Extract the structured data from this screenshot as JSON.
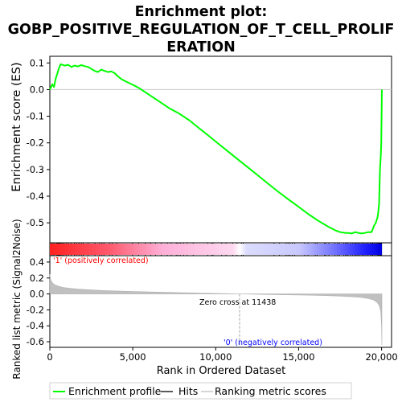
{
  "chart_data": {
    "type": "line",
    "title_lines": [
      "Enrichment plot:",
      "GOBP_POSITIVE_REGULATION_OF_T_CELL_PROLIF",
      "ERATION"
    ],
    "colors": {
      "enrichment": "#00ff00",
      "hits": "#000000",
      "metric_fill": "#c0c0c0",
      "positive_band": "#ff0000",
      "negative_band": "#0000ff",
      "zero_cross_label": "#000000",
      "pos_label": "#ff0000",
      "neg_label": "#0000ff"
    },
    "es_panel": {
      "ylabel": "Enrichment score (ES)",
      "ylim": [
        -0.575,
        0.125
      ],
      "yticks": [
        0.1,
        0.0,
        -0.1,
        -0.2,
        -0.3,
        -0.4,
        -0.5
      ],
      "ytick_labels": [
        "0.1",
        "0.0",
        "-0.1",
        "-0.2",
        "-0.3",
        "-0.4",
        "-0.5"
      ],
      "series": {
        "name": "Enrichment profile",
        "x": [
          0,
          150,
          250,
          350,
          450,
          550,
          650,
          750,
          900,
          1100,
          1300,
          1500,
          1700,
          1900,
          2100,
          2300,
          2500,
          2700,
          2900,
          3100,
          3300,
          3500,
          3700,
          3900,
          4100,
          4300,
          4600,
          5000,
          5400,
          6000,
          6600,
          7200,
          7800,
          8400,
          9000,
          9600,
          10200,
          10800,
          11400,
          12000,
          12600,
          13200,
          13800,
          14400,
          15000,
          15600,
          16200,
          16800,
          17200,
          17500,
          17800,
          18000,
          18200,
          18400,
          18600,
          18800,
          19000,
          19200,
          19400,
          19550,
          19650,
          19750,
          19800,
          19850,
          19900,
          19950,
          19980,
          20000,
          20020
        ],
        "y": [
          0.0,
          0.02,
          0.01,
          0.04,
          0.06,
          0.08,
          0.095,
          0.093,
          0.09,
          0.093,
          0.085,
          0.09,
          0.087,
          0.092,
          0.088,
          0.085,
          0.078,
          0.07,
          0.066,
          0.075,
          0.07,
          0.066,
          0.068,
          0.062,
          0.05,
          0.04,
          0.03,
          0.018,
          0.005,
          -0.02,
          -0.045,
          -0.07,
          -0.09,
          -0.115,
          -0.145,
          -0.175,
          -0.205,
          -0.235,
          -0.265,
          -0.295,
          -0.325,
          -0.355,
          -0.385,
          -0.413,
          -0.44,
          -0.468,
          -0.493,
          -0.515,
          -0.528,
          -0.535,
          -0.538,
          -0.538,
          -0.54,
          -0.535,
          -0.538,
          -0.54,
          -0.538,
          -0.535,
          -0.535,
          -0.51,
          -0.5,
          -0.48,
          -0.46,
          -0.43,
          -0.3,
          -0.25,
          -0.2,
          -0.1,
          0.0
        ]
      }
    },
    "hits_positions": [
      100,
      200,
      290,
      420,
      470,
      520,
      570,
      620,
      680,
      760,
      850,
      980,
      1120,
      1290,
      1480,
      1620,
      1760,
      1900,
      2020,
      2300,
      2720,
      3000,
      3140,
      3260,
      3620,
      3760,
      4020,
      4980,
      5350,
      5760,
      6080,
      6380,
      6720,
      7080,
      7320,
      7620,
      7720,
      7860,
      8060,
      8280,
      8640,
      9520,
      9760,
      9840,
      10360,
      10620,
      11020,
      11280,
      11560,
      11660,
      13520,
      13840,
      14240,
      14360,
      14480,
      14620,
      14760,
      15360,
      15560,
      16000,
      16120,
      16560,
      16640,
      16820,
      17180,
      17340,
      17460,
      17720,
      17820,
      17900,
      17980,
      18120,
      18240,
      18360,
      18440,
      18520,
      18600,
      18700,
      18820,
      18900,
      19000,
      19120,
      19200,
      19320,
      19400,
      19460,
      19540,
      19620,
      19720,
      19780,
      19820,
      19860,
      19900,
      19940,
      19970,
      20000
    ],
    "rank_panel": {
      "ylabel": "Ranked list metric (Signal2Noise)",
      "ylim": [
        -0.67,
        0.48
      ],
      "yticks": [
        0.4,
        0.2,
        0.0,
        -0.2,
        -0.4,
        -0.6
      ],
      "ytick_labels": [
        "0.4",
        "0.2",
        "0.0",
        "-0.2",
        "-0.4",
        "-0.6"
      ],
      "x": [
        0,
        40,
        100,
        200,
        350,
        550,
        800,
        1200,
        1700,
        2500,
        3500,
        5000,
        7000,
        9000,
        11438,
        13500,
        15500,
        16500,
        17500,
        18200,
        18800,
        19200,
        19500,
        19700,
        19850,
        19950,
        20000,
        20020
      ],
      "values": [
        0.25,
        0.19,
        0.155,
        0.13,
        0.11,
        0.095,
        0.082,
        0.07,
        0.06,
        0.05,
        0.04,
        0.03,
        0.02,
        0.01,
        0.0,
        -0.008,
        -0.015,
        -0.02,
        -0.027,
        -0.035,
        -0.045,
        -0.058,
        -0.075,
        -0.1,
        -0.14,
        -0.22,
        -0.4,
        -0.64
      ],
      "zero_cross_label": "Zero cross at 11438",
      "zero_cross": 11438,
      "pos_label": "'1' (positively correlated)",
      "neg_label": "'0' (negatively correlated)"
    },
    "xaxis": {
      "label": "Rank in Ordered Dataset",
      "xlim": [
        0,
        20600
      ],
      "ticks": [
        0,
        5000,
        10000,
        15000,
        20000
      ],
      "tick_labels": [
        "0",
        "5,000",
        "10,000",
        "15,000",
        "20,000"
      ]
    },
    "legend": {
      "position": "bottom",
      "items": [
        "Enrichment profile",
        "Hits",
        "Ranking metric scores"
      ]
    }
  }
}
